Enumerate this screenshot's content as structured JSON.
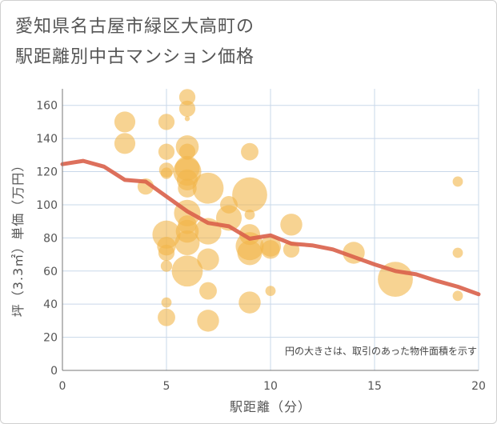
{
  "title_lines": [
    "愛知県名古屋市緑区大高町の",
    "駅距離別中古マンション価格"
  ],
  "chart_data": {
    "type": "scatter",
    "xlabel": "駅距離（分）",
    "ylabel": "坪（3.3㎡）単価（万円）",
    "note": "円の大きさは、取引のあった物件面積を示す",
    "xlim": [
      0,
      20
    ],
    "ylim": [
      0,
      170
    ],
    "xticks": [
      "0",
      "5",
      "10",
      "15",
      "20"
    ],
    "yticks": [
      "0",
      "20",
      "40",
      "60",
      "80",
      "100",
      "120",
      "140",
      "160"
    ],
    "grid": true,
    "colors": {
      "bubble": "#f2b54a",
      "trend": "#d9614a",
      "grid": "#c9d8ea",
      "axis": "#777777"
    },
    "points": [
      {
        "x": 3,
        "y": 150,
        "size": 50
      },
      {
        "x": 3,
        "y": 137,
        "size": 50
      },
      {
        "x": 4,
        "y": 111,
        "size": 30
      },
      {
        "x": 5,
        "y": 150,
        "size": 30
      },
      {
        "x": 5,
        "y": 132,
        "size": 30
      },
      {
        "x": 5,
        "y": 121,
        "size": 25
      },
      {
        "x": 5,
        "y": 119,
        "size": 15
      },
      {
        "x": 5,
        "y": 82,
        "size": 90
      },
      {
        "x": 5,
        "y": 75,
        "size": 40
      },
      {
        "x": 5,
        "y": 71,
        "size": 30
      },
      {
        "x": 5,
        "y": 63,
        "size": 15
      },
      {
        "x": 5,
        "y": 41,
        "size": 12
      },
      {
        "x": 5,
        "y": 32,
        "size": 35
      },
      {
        "x": 6,
        "y": 165,
        "size": 30
      },
      {
        "x": 6,
        "y": 158,
        "size": 30
      },
      {
        "x": 6,
        "y": 135,
        "size": 60
      },
      {
        "x": 6,
        "y": 132,
        "size": 30
      },
      {
        "x": 6,
        "y": 122,
        "size": 70
      },
      {
        "x": 6,
        "y": 120,
        "size": 90
      },
      {
        "x": 6,
        "y": 115,
        "size": 50
      },
      {
        "x": 6,
        "y": 110,
        "size": 40
      },
      {
        "x": 6,
        "y": 95,
        "size": 80
      },
      {
        "x": 6,
        "y": 88,
        "size": 40
      },
      {
        "x": 6,
        "y": 84,
        "size": 60
      },
      {
        "x": 6,
        "y": 77,
        "size": 70
      },
      {
        "x": 6,
        "y": 60,
        "size": 110
      },
      {
        "x": 6,
        "y": 152,
        "size": 3
      },
      {
        "x": 7,
        "y": 110,
        "size": 110
      },
      {
        "x": 7,
        "y": 84,
        "size": 80
      },
      {
        "x": 7,
        "y": 67,
        "size": 55
      },
      {
        "x": 7,
        "y": 48,
        "size": 35
      },
      {
        "x": 7,
        "y": 30,
        "size": 55
      },
      {
        "x": 8,
        "y": 100,
        "size": 35
      },
      {
        "x": 8,
        "y": 92,
        "size": 75
      },
      {
        "x": 9,
        "y": 132,
        "size": 35
      },
      {
        "x": 9,
        "y": 106,
        "size": 140
      },
      {
        "x": 9,
        "y": 94,
        "size": 12
      },
      {
        "x": 9,
        "y": 82,
        "size": 50
      },
      {
        "x": 9,
        "y": 75,
        "size": 90
      },
      {
        "x": 9,
        "y": 71,
        "size": 70
      },
      {
        "x": 9,
        "y": 41,
        "size": 55
      },
      {
        "x": 10,
        "y": 75,
        "size": 50
      },
      {
        "x": 10,
        "y": 73,
        "size": 40
      },
      {
        "x": 10,
        "y": 48,
        "size": 12
      },
      {
        "x": 11,
        "y": 88,
        "size": 55
      },
      {
        "x": 11,
        "y": 73,
        "size": 30
      },
      {
        "x": 14,
        "y": 71,
        "size": 55
      },
      {
        "x": 16,
        "y": 55,
        "size": 140
      },
      {
        "x": 19,
        "y": 114,
        "size": 12
      },
      {
        "x": 19,
        "y": 71,
        "size": 12
      },
      {
        "x": 19,
        "y": 45,
        "size": 12
      }
    ],
    "trend": [
      {
        "x": 0,
        "y": 124.5
      },
      {
        "x": 1,
        "y": 126.5
      },
      {
        "x": 2,
        "y": 123
      },
      {
        "x": 3,
        "y": 115
      },
      {
        "x": 4,
        "y": 114
      },
      {
        "x": 5,
        "y": 105
      },
      {
        "x": 6,
        "y": 96
      },
      {
        "x": 7,
        "y": 89
      },
      {
        "x": 8,
        "y": 87
      },
      {
        "x": 9,
        "y": 79.5
      },
      {
        "x": 10,
        "y": 81.5
      },
      {
        "x": 11,
        "y": 76.5
      },
      {
        "x": 12,
        "y": 75.5
      },
      {
        "x": 13,
        "y": 73
      },
      {
        "x": 14,
        "y": 68.5
      },
      {
        "x": 15,
        "y": 64
      },
      {
        "x": 16,
        "y": 60
      },
      {
        "x": 17,
        "y": 58
      },
      {
        "x": 18,
        "y": 54
      },
      {
        "x": 19,
        "y": 50.5
      },
      {
        "x": 20,
        "y": 46
      }
    ]
  }
}
